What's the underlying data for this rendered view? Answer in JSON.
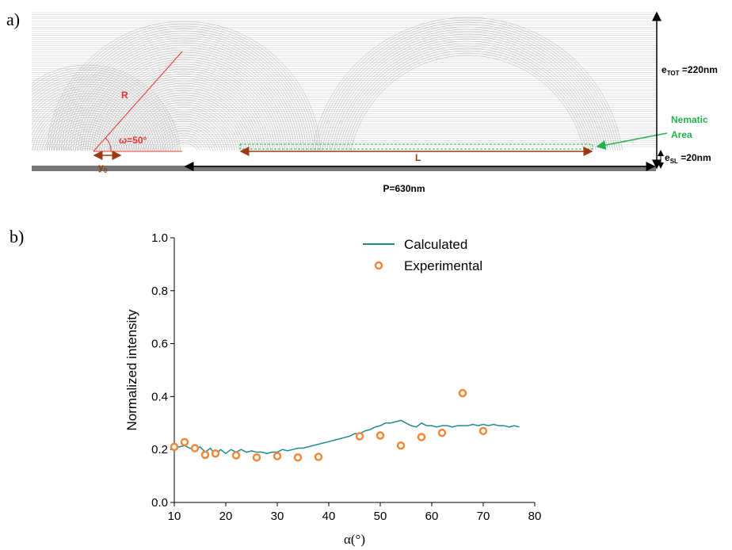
{
  "panel_a": {
    "label": "a)",
    "radius": "R",
    "angle": "ω=50°",
    "offset": {
      "symbol": "y",
      "subscript": "0"
    },
    "length": "L",
    "period": "P=630nm",
    "nematic": [
      "Nematic",
      "Area"
    ],
    "total_thickness": {
      "symbol": "e",
      "subscript": "TOT",
      "value": " =220nm"
    },
    "layer_thickness": {
      "symbol": "e",
      "subscript": "SL",
      "value": " =20nm"
    }
  },
  "chart_data": {
    "type": "line",
    "panel_label": "b)",
    "x_label": "α(°)",
    "y_label": "Normalized intensity",
    "xlim": [
      10,
      80
    ],
    "xticks": [
      10,
      20,
      30,
      40,
      50,
      60,
      70,
      80
    ],
    "ylim": [
      0,
      1
    ],
    "yticks": [
      {
        "value": 0,
        "label": "0.0"
      },
      0.2,
      0.4,
      0.6,
      0.8,
      {
        "value": 1,
        "label": "1.0"
      }
    ],
    "legend": "top-right",
    "series": [
      {
        "name": "Calculated",
        "type": "line",
        "color": "#1f8a8f",
        "x": [
          10,
          11,
          12,
          13,
          14,
          15,
          16,
          17,
          18,
          19,
          20,
          21,
          22,
          23,
          24,
          25,
          26,
          27,
          28,
          29,
          30,
          31,
          32,
          33,
          34,
          35,
          36,
          37,
          38,
          39,
          40,
          41,
          42,
          43,
          44,
          45,
          46,
          47,
          48,
          49,
          50,
          51,
          52,
          53,
          54,
          55,
          56,
          57,
          58,
          59,
          60,
          61,
          62,
          63,
          64,
          65,
          66,
          67,
          68,
          69,
          70,
          71,
          72,
          73,
          74,
          75,
          76,
          77
        ],
        "values": [
          0.205,
          0.21,
          0.215,
          0.205,
          0.2,
          0.21,
          0.19,
          0.205,
          0.18,
          0.2,
          0.185,
          0.2,
          0.19,
          0.2,
          0.19,
          0.195,
          0.19,
          0.19,
          0.185,
          0.19,
          0.19,
          0.2,
          0.195,
          0.2,
          0.205,
          0.205,
          0.21,
          0.215,
          0.22,
          0.225,
          0.23,
          0.235,
          0.24,
          0.245,
          0.25,
          0.26,
          0.26,
          0.27,
          0.275,
          0.285,
          0.29,
          0.3,
          0.3,
          0.305,
          0.31,
          0.3,
          0.29,
          0.285,
          0.3,
          0.29,
          0.29,
          0.285,
          0.29,
          0.29,
          0.285,
          0.29,
          0.29,
          0.29,
          0.295,
          0.29,
          0.295,
          0.29,
          0.295,
          0.29,
          0.29,
          0.285,
          0.29,
          0.285
        ]
      },
      {
        "name": "Experimental",
        "type": "scatter",
        "color": "#f0883a",
        "x": [
          10,
          12,
          14,
          16,
          18,
          22,
          26,
          30,
          34,
          38,
          46,
          50,
          54,
          58,
          62,
          66,
          70
        ],
        "values": [
          0.21,
          0.228,
          0.205,
          0.18,
          0.185,
          0.178,
          0.17,
          0.175,
          0.17,
          0.172,
          0.25,
          0.253,
          0.215,
          0.247,
          0.263,
          0.413,
          0.27
        ]
      }
    ]
  }
}
